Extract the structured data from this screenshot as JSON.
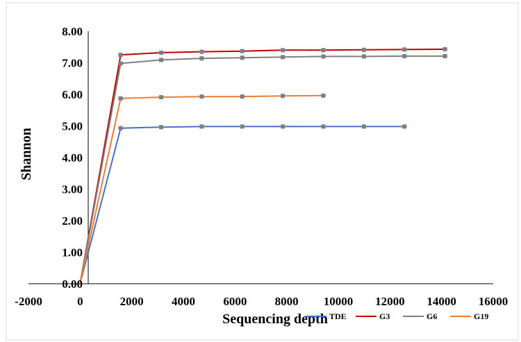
{
  "chart_data": {
    "type": "line",
    "xlabel": "Sequencing depth",
    "ylabel": "Shannon",
    "xlim": [
      -2000,
      16000
    ],
    "ylim": [
      0,
      8
    ],
    "x_ticks": [
      "-2000",
      "0",
      "2000",
      "4000",
      "6000",
      "8000",
      "10000",
      "12000",
      "14000",
      "16000"
    ],
    "y_ticks": [
      "0.00",
      "1.00",
      "2.00",
      "3.00",
      "4.00",
      "5.00",
      "6.00",
      "7.00",
      "8.00"
    ],
    "grid": false,
    "legend_position": "bottom-right",
    "series": [
      {
        "name": "TDE",
        "color": "#4472C4",
        "points": [
          [
            0,
            0
          ],
          [
            1570,
            4.93
          ],
          [
            3140,
            4.96
          ],
          [
            4710,
            4.98
          ],
          [
            6280,
            4.98
          ],
          [
            7850,
            4.98
          ],
          [
            9420,
            4.98
          ],
          [
            10990,
            4.98
          ],
          [
            12560,
            4.98
          ]
        ]
      },
      {
        "name": "G3",
        "color": "#C00000",
        "points": [
          [
            0,
            0
          ],
          [
            1570,
            7.25
          ],
          [
            3140,
            7.32
          ],
          [
            4710,
            7.35
          ],
          [
            6280,
            7.37
          ],
          [
            7850,
            7.4
          ],
          [
            9420,
            7.4
          ],
          [
            10990,
            7.41
          ],
          [
            12560,
            7.42
          ],
          [
            14130,
            7.43
          ]
        ]
      },
      {
        "name": "G6",
        "color": "#7F7F7F",
        "points": [
          [
            0,
            0
          ],
          [
            1570,
            6.98
          ],
          [
            3140,
            7.09
          ],
          [
            4710,
            7.14
          ],
          [
            6280,
            7.16
          ],
          [
            7850,
            7.18
          ],
          [
            9420,
            7.2
          ],
          [
            10990,
            7.2
          ],
          [
            12560,
            7.21
          ],
          [
            14130,
            7.21
          ]
        ]
      },
      {
        "name": "G19",
        "color": "#ED7D31",
        "points": [
          [
            0,
            0
          ],
          [
            1570,
            5.87
          ],
          [
            3140,
            5.91
          ],
          [
            4710,
            5.93
          ],
          [
            6280,
            5.93
          ],
          [
            7850,
            5.95
          ],
          [
            9420,
            5.96
          ]
        ]
      }
    ]
  }
}
